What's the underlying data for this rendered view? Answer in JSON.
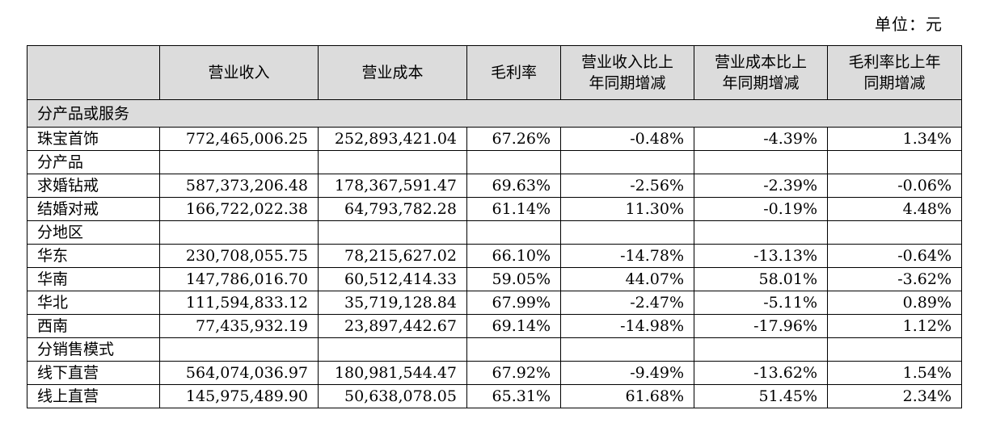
{
  "unit_label": "单位：元",
  "headers": [
    {
      "lines": [
        ""
      ]
    },
    {
      "lines": [
        "营业收入"
      ]
    },
    {
      "lines": [
        "营业成本"
      ]
    },
    {
      "lines": [
        "毛利率"
      ]
    },
    {
      "lines": [
        "营业收入比上",
        "年同期增减"
      ]
    },
    {
      "lines": [
        "营业成本比上",
        "年同期增减"
      ]
    },
    {
      "lines": [
        "毛利率比上年",
        "同期增减"
      ]
    }
  ],
  "section_title": "分产品或服务",
  "rows": [
    {
      "label": "珠宝首饰",
      "values": [
        "772,465,006.25",
        "252,893,421.04",
        "67.26%",
        "-0.48%",
        "-4.39%",
        "1.34%"
      ]
    },
    {
      "label": "分产品",
      "values": [
        "",
        "",
        "",
        "",
        "",
        ""
      ]
    },
    {
      "label": "求婚钻戒",
      "values": [
        "587,373,206.48",
        "178,367,591.47",
        "69.63%",
        "-2.56%",
        "-2.39%",
        "-0.06%"
      ]
    },
    {
      "label": "结婚对戒",
      "values": [
        "166,722,022.38",
        "64,793,782.28",
        "61.14%",
        "11.30%",
        "-0.19%",
        "4.48%"
      ]
    },
    {
      "label": "分地区",
      "values": [
        "",
        "",
        "",
        "",
        "",
        ""
      ]
    },
    {
      "label": "华东",
      "values": [
        "230,708,055.75",
        "78,215,627.02",
        "66.10%",
        "-14.78%",
        "-13.13%",
        "-0.64%"
      ]
    },
    {
      "label": "华南",
      "values": [
        "147,786,016.70",
        "60,512,414.33",
        "59.05%",
        "44.07%",
        "58.01%",
        "-3.62%"
      ]
    },
    {
      "label": "华北",
      "values": [
        "111,594,833.12",
        "35,719,128.84",
        "67.99%",
        "-2.47%",
        "-5.11%",
        "0.89%"
      ]
    },
    {
      "label": "西南",
      "values": [
        "77,435,932.19",
        "23,897,442.67",
        "69.14%",
        "-14.98%",
        "-17.96%",
        "1.12%"
      ]
    },
    {
      "label": "分销售模式",
      "values": [
        "",
        "",
        "",
        "",
        "",
        ""
      ]
    },
    {
      "label": "线下直营",
      "values": [
        "564,074,036.97",
        "180,981,544.47",
        "67.92%",
        "-9.49%",
        "-13.62%",
        "1.54%"
      ]
    },
    {
      "label": "线上直营",
      "values": [
        "145,975,489.90",
        "50,638,078.05",
        "65.31%",
        "61.68%",
        "51.45%",
        "2.34%"
      ]
    }
  ]
}
